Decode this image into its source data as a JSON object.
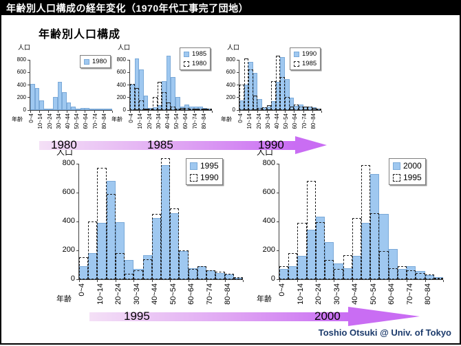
{
  "slide": {
    "title": "年齢別人口構成の経年変化（1970年代工事完了団地）",
    "subtitle": "年齢別人口構成",
    "footer": "Toshio Otsuki @ Univ. of Tokyo"
  },
  "axis": {
    "y_label": "人口",
    "x_label": "年齢",
    "y_ticks": [
      0,
      200,
      400,
      600,
      800
    ]
  },
  "timelines": [
    {
      "labels": [
        "1980",
        "1985",
        "1990"
      ]
    },
    {
      "labels": [
        "1995",
        "2000"
      ]
    }
  ],
  "chart_data": [
    {
      "type": "bar",
      "title": "1980",
      "ylabel": "人口",
      "xlabel": "年齢",
      "ylim": [
        0,
        800
      ],
      "grid": false,
      "legend_position": "top-right",
      "categories": [
        "0~4",
        "5~9",
        "10~14",
        "15~19",
        "20~24",
        "25~29",
        "30~34",
        "35~39",
        "40~44",
        "45~49",
        "50~54",
        "55~59",
        "60~64",
        "65~69",
        "70~74",
        "75~79",
        "80~84",
        "85~"
      ],
      "labeled_categories": [
        "0~4",
        "10~14",
        "20~24",
        "30~34",
        "40~44",
        "50~54",
        "60~64",
        "70~74",
        "80~84"
      ],
      "series": [
        {
          "name": "1980",
          "style": "solid",
          "values": [
            420,
            350,
            150,
            25,
            15,
            205,
            450,
            280,
            120,
            50,
            15,
            30,
            30,
            20,
            10,
            10,
            10,
            5
          ]
        }
      ]
    },
    {
      "type": "bar",
      "title": "1985",
      "ylabel": "人口",
      "xlabel": "年齢",
      "ylim": [
        0,
        800
      ],
      "grid": false,
      "legend_position": "top-right",
      "categories": [
        "0~4",
        "5~9",
        "10~14",
        "15~19",
        "20~24",
        "25~29",
        "30~34",
        "35~39",
        "40~44",
        "45~49",
        "50~54",
        "55~59",
        "60~64",
        "65~69",
        "70~74",
        "75~79",
        "80~84",
        "85~"
      ],
      "labeled_categories": [
        "0~4",
        "10~14",
        "20~24",
        "30~34",
        "40~44",
        "50~54",
        "60~64",
        "70~74",
        "80~84"
      ],
      "series": [
        {
          "name": "1985",
          "style": "solid",
          "values": [
            400,
            820,
            650,
            230,
            30,
            40,
            80,
            460,
            870,
            530,
            210,
            60,
            90,
            60,
            50,
            50,
            30,
            10
          ]
        },
        {
          "name": "1980",
          "style": "dashed",
          "values": [
            420,
            350,
            150,
            25,
            15,
            205,
            450,
            280,
            120,
            50,
            15,
            30,
            30,
            20,
            10,
            10,
            10,
            5
          ]
        }
      ]
    },
    {
      "type": "bar",
      "title": "1990",
      "ylabel": "人口",
      "xlabel": "年齢",
      "ylim": [
        0,
        800
      ],
      "grid": false,
      "legend_position": "top-right",
      "categories": [
        "0~4",
        "5~9",
        "10~14",
        "15~19",
        "20~24",
        "25~29",
        "30~34",
        "35~39",
        "40~44",
        "45~49",
        "50~54",
        "55~59",
        "60~64",
        "65~69",
        "70~74",
        "75~79",
        "80~84",
        "85~"
      ],
      "labeled_categories": [
        "0~4",
        "10~14",
        "20~24",
        "30~34",
        "40~44",
        "50~54",
        "60~64",
        "70~74",
        "80~84"
      ],
      "series": [
        {
          "name": "1990",
          "style": "solid",
          "values": [
            150,
            400,
            770,
            590,
            180,
            40,
            60,
            140,
            450,
            840,
            490,
            200,
            70,
            90,
            60,
            50,
            40,
            15
          ]
        },
        {
          "name": "1985",
          "style": "dashed",
          "values": [
            400,
            820,
            650,
            230,
            30,
            40,
            80,
            460,
            870,
            530,
            210,
            60,
            90,
            60,
            50,
            50,
            30,
            10
          ]
        }
      ]
    },
    {
      "type": "bar",
      "title": "1995",
      "ylabel": "人口",
      "xlabel": "年齢",
      "ylim": [
        0,
        800
      ],
      "grid": false,
      "legend_position": "top-right",
      "categories": [
        "0~4",
        "5~9",
        "10~14",
        "15~19",
        "20~24",
        "25~29",
        "30~34",
        "35~39",
        "40~44",
        "45~49",
        "50~54",
        "55~59",
        "60~64",
        "65~69",
        "70~74",
        "75~79",
        "80~84",
        "85~"
      ],
      "labeled_categories": [
        "0~4",
        "10~14",
        "20~24",
        "30~34",
        "40~44",
        "50~54",
        "60~64",
        "70~74",
        "80~84"
      ],
      "series": [
        {
          "name": "1995",
          "style": "solid",
          "values": [
            90,
            180,
            390,
            680,
            395,
            135,
            70,
            165,
            425,
            790,
            455,
            195,
            75,
            90,
            60,
            45,
            35,
            10
          ]
        },
        {
          "name": "1990",
          "style": "dashed",
          "values": [
            150,
            400,
            770,
            590,
            180,
            40,
            60,
            140,
            450,
            840,
            490,
            200,
            70,
            90,
            60,
            50,
            40,
            15
          ]
        }
      ]
    },
    {
      "type": "bar",
      "title": "2000",
      "ylabel": "人口",
      "xlabel": "年齢",
      "ylim": [
        0,
        800
      ],
      "grid": false,
      "legend_position": "top-right",
      "categories": [
        "0~4",
        "5~9",
        "10~14",
        "15~19",
        "20~24",
        "25~29",
        "30~34",
        "35~39",
        "40~44",
        "45~49",
        "50~54",
        "55~59",
        "60~64",
        "65~69",
        "70~74",
        "75~79",
        "80~84",
        "85~"
      ],
      "labeled_categories": [
        "0~4",
        "10~14",
        "20~24",
        "30~34",
        "40~44",
        "50~54",
        "60~64",
        "70~74",
        "80~84"
      ],
      "series": [
        {
          "name": "2000",
          "style": "solid",
          "values": [
            70,
            90,
            160,
            345,
            435,
            255,
            110,
            75,
            160,
            390,
            730,
            450,
            210,
            70,
            90,
            55,
            30,
            15
          ]
        },
        {
          "name": "1995",
          "style": "dashed",
          "values": [
            90,
            180,
            390,
            680,
            395,
            135,
            70,
            165,
            425,
            790,
            455,
            195,
            75,
            90,
            60,
            45,
            35,
            10
          ]
        }
      ]
    }
  ]
}
